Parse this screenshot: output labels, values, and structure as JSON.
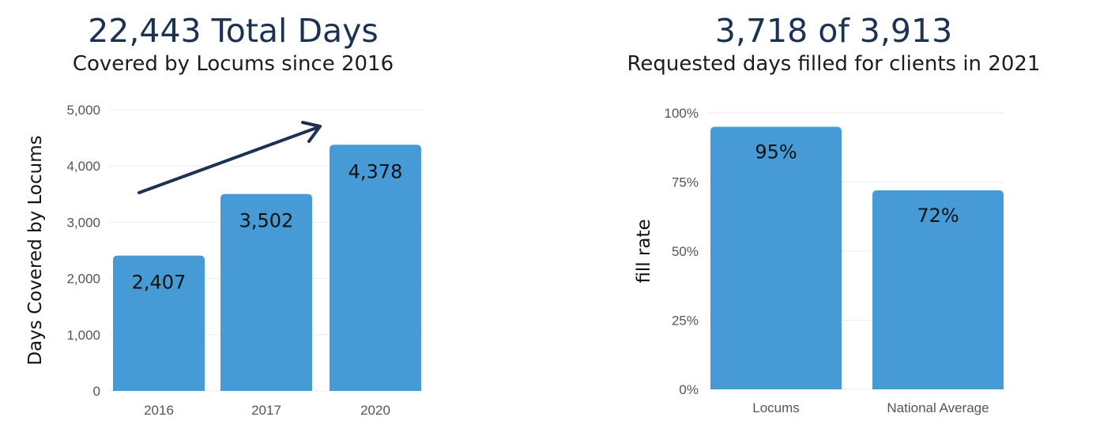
{
  "chart_data": [
    {
      "type": "bar",
      "title": "22,443 Total Days",
      "subtitle": "Covered by Locums since 2016",
      "ylabel": "Days Covered by Locums",
      "xlabel": "",
      "categories": [
        "2016",
        "2017",
        "2020"
      ],
      "values": [
        2407,
        3502,
        4378
      ],
      "data_labels": [
        "2,407",
        "3,502",
        "4,378"
      ],
      "ylim": [
        0,
        5000
      ],
      "yticks": [
        0,
        1000,
        2000,
        3000,
        4000,
        5000
      ],
      "ytick_labels": [
        "0",
        "1,000",
        "2,000",
        "3,000",
        "4,000",
        "5,000"
      ],
      "annotation": "trend-arrow",
      "bar_color": "#469bd6",
      "grid": true
    },
    {
      "type": "bar",
      "title": "3,718 of 3,913",
      "subtitle": "Requested days filled for clients in 2021",
      "ylabel": "fill rate",
      "xlabel": "",
      "categories": [
        "Locums",
        "National Average"
      ],
      "values": [
        95,
        72
      ],
      "data_labels": [
        "95%",
        "72%"
      ],
      "ylim": [
        0,
        100
      ],
      "yticks": [
        0,
        25,
        50,
        75,
        100
      ],
      "ytick_labels": [
        "0%",
        "25%",
        "50%",
        "75%",
        "100%"
      ],
      "bar_color": "#469bd6",
      "grid": true
    }
  ],
  "colors": {
    "title": "#1b3253",
    "arrow": "#1b3253"
  }
}
